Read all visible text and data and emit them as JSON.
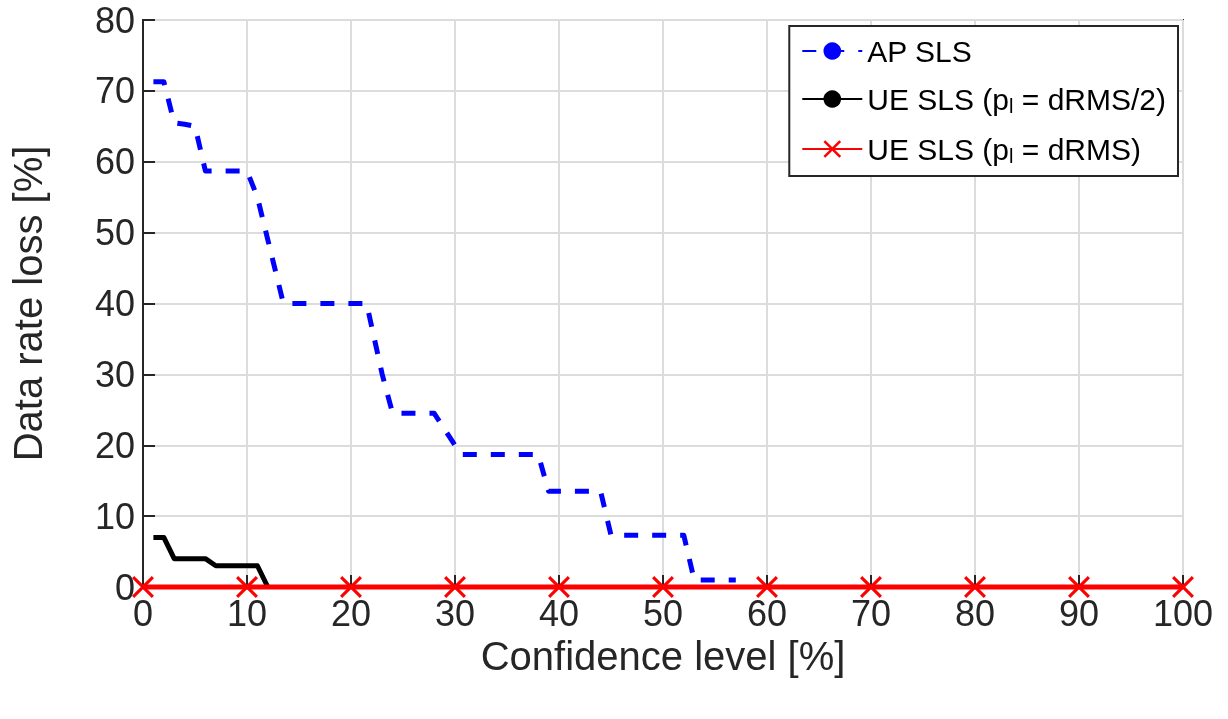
{
  "chart_data": {
    "type": "line",
    "xlabel": "Confidence level [%]",
    "ylabel": "Data rate loss [%]",
    "xlim": [
      0,
      100
    ],
    "xticks": [
      0,
      10,
      20,
      30,
      40,
      50,
      60,
      70,
      80,
      90,
      100
    ],
    "ylim": [
      0,
      80
    ],
    "yticks": [
      0,
      10,
      20,
      30,
      40,
      50,
      60,
      70,
      80
    ],
    "grid": true,
    "legend": "top right",
    "series": [
      {
        "name": "AP SLS",
        "color": "#0000ff",
        "line_style": "dashed",
        "marker": "none",
        "x": [
          1,
          2,
          3,
          4,
          5,
          6,
          10,
          11,
          13.5,
          21.5,
          23,
          24,
          28,
          30,
          30.5,
          38,
          39,
          44,
          45,
          52,
          53,
          57
        ],
        "values": [
          71.3,
          71.3,
          65.5,
          65.3,
          65,
          58.7,
          58.7,
          55,
          40,
          40,
          30,
          24.5,
          24.5,
          20,
          18.7,
          18.7,
          13.5,
          13.5,
          7.3,
          7.3,
          1,
          1
        ]
      },
      {
        "name": "UE SLS (p$_{l}$ = dRMS/2)",
        "color": "#000000",
        "line_style": "solid",
        "marker": "none",
        "x": [
          1,
          2,
          3,
          6,
          7,
          11,
          12
        ],
        "values": [
          7,
          7,
          4,
          4,
          3,
          3,
          0
        ]
      },
      {
        "name": "UE SLS (p$_{l}$ = dRMS)",
        "color": "#ff0000",
        "line_style": "solid",
        "marker": "cross",
        "x": [
          0,
          10,
          20,
          30,
          40,
          50,
          60,
          70,
          80,
          90,
          100
        ],
        "values": [
          0,
          0,
          0,
          0,
          0,
          0,
          0,
          0,
          0,
          0,
          0
        ]
      }
    ]
  }
}
